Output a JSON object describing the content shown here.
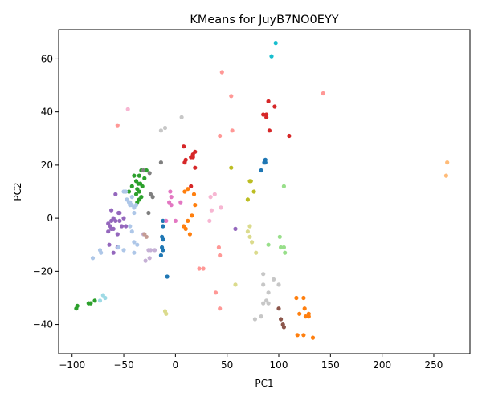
{
  "chart_data": {
    "type": "scatter",
    "title": "KMeans for JuyB7NO0EYY",
    "xlabel": "PC1",
    "ylabel": "PC2",
    "xlim": [
      -113,
      285
    ],
    "ylim": [
      -51,
      71
    ],
    "xticks": [
      -100,
      -50,
      0,
      50,
      100,
      150,
      200,
      250
    ],
    "yticks": [
      -40,
      -20,
      0,
      20,
      40,
      60
    ],
    "grid": false,
    "legend": "none",
    "series": [
      {
        "color": "#1f77b4",
        "points": [
          [
            -12,
            -1
          ],
          [
            -12,
            -3
          ],
          [
            -13,
            -7
          ],
          [
            -12,
            -8
          ],
          [
            -13,
            -11
          ],
          [
            -12,
            -12
          ],
          [
            -14,
            -14
          ],
          [
            -8,
            -22
          ],
          [
            83,
            18
          ],
          [
            86,
            21
          ],
          [
            87,
            22
          ],
          [
            87,
            21
          ]
        ]
      },
      {
        "color": "#ff7f0e",
        "points": [
          [
            9,
            10
          ],
          [
            12,
            11
          ],
          [
            18,
            9
          ],
          [
            19,
            5
          ],
          [
            16,
            1
          ],
          [
            12,
            -1
          ],
          [
            10,
            -4
          ],
          [
            8,
            -3
          ],
          [
            14,
            -6
          ],
          [
            117,
            -30
          ],
          [
            124,
            -30
          ],
          [
            125,
            -34
          ],
          [
            129,
            -36
          ],
          [
            120,
            -36
          ],
          [
            126,
            -37
          ],
          [
            129,
            -37
          ],
          [
            118,
            -44
          ],
          [
            124,
            -44
          ],
          [
            133,
            -45
          ]
        ]
      },
      {
        "color": "#2ca02c",
        "points": [
          [
            -45,
            10
          ],
          [
            -42,
            12
          ],
          [
            -40,
            16
          ],
          [
            -38,
            14
          ],
          [
            -35,
            16
          ],
          [
            -33,
            18
          ],
          [
            -37,
            11
          ],
          [
            -35,
            10
          ],
          [
            -33,
            8
          ],
          [
            -37,
            6
          ],
          [
            -35,
            7
          ],
          [
            -28,
            18
          ],
          [
            -30,
            15
          ],
          [
            -32,
            12
          ],
          [
            -38,
            9
          ],
          [
            -36,
            13
          ],
          [
            -34,
            13
          ],
          [
            -96,
            -34
          ],
          [
            -95,
            -33
          ],
          [
            -84,
            -32
          ],
          [
            -82,
            -32
          ],
          [
            -78,
            -31
          ]
        ]
      },
      {
        "color": "#d62728",
        "points": [
          [
            85,
            39
          ],
          [
            88,
            39
          ],
          [
            88,
            38
          ],
          [
            90,
            44
          ],
          [
            96,
            42
          ],
          [
            91,
            33
          ],
          [
            110,
            31
          ],
          [
            8,
            27
          ],
          [
            17,
            24
          ],
          [
            19,
            25
          ],
          [
            15,
            23
          ],
          [
            17,
            23
          ],
          [
            10,
            22
          ],
          [
            9,
            21
          ],
          [
            19,
            19
          ],
          [
            15,
            12
          ]
        ]
      },
      {
        "color": "#9467bd",
        "points": [
          [
            -62,
            3
          ],
          [
            -58,
            9
          ],
          [
            -55,
            2
          ],
          [
            -54,
            2
          ],
          [
            -60,
            0
          ],
          [
            -62,
            -1
          ],
          [
            -58,
            -1
          ],
          [
            -65,
            -2
          ],
          [
            -63,
            -3
          ],
          [
            -65,
            -5
          ],
          [
            -62,
            -4
          ],
          [
            -60,
            -4
          ],
          [
            -56,
            -6
          ],
          [
            -52,
            -3
          ],
          [
            -54,
            -1
          ],
          [
            -50,
            0
          ],
          [
            -48,
            -3
          ],
          [
            -56,
            -11
          ],
          [
            -64,
            -10
          ],
          [
            -60,
            -13
          ],
          [
            58,
            -4
          ]
        ]
      },
      {
        "color": "#8c564b",
        "points": [
          [
            100,
            -34
          ],
          [
            102,
            -38
          ],
          [
            104,
            -40
          ],
          [
            105,
            -41
          ]
        ]
      },
      {
        "color": "#e377c2",
        "points": [
          [
            -5,
            10
          ],
          [
            -4,
            8
          ],
          [
            -6,
            6
          ],
          [
            -4,
            5
          ],
          [
            -9,
            -1
          ],
          [
            0,
            -1
          ],
          [
            5,
            6
          ]
        ]
      },
      {
        "color": "#7f7f7f",
        "points": [
          [
            -31,
            18
          ],
          [
            -25,
            17
          ],
          [
            -14,
            21
          ],
          [
            -24,
            9
          ],
          [
            -22,
            8
          ],
          [
            -26,
            2
          ]
        ]
      },
      {
        "color": "#bcbd22",
        "points": [
          [
            54,
            19
          ],
          [
            72,
            14
          ],
          [
            73,
            14
          ],
          [
            76,
            10
          ],
          [
            70,
            7
          ]
        ]
      },
      {
        "color": "#17becf",
        "points": [
          [
            97,
            66
          ],
          [
            93,
            61
          ]
        ]
      },
      {
        "color": "#aec7e8",
        "points": [
          [
            -50,
            10
          ],
          [
            -48,
            10
          ],
          [
            -47,
            7
          ],
          [
            -45,
            6
          ],
          [
            -44,
            5
          ],
          [
            -42,
            5
          ],
          [
            -40,
            4
          ],
          [
            -42,
            8
          ],
          [
            -40,
            2
          ],
          [
            -42,
            -5
          ],
          [
            -44,
            -3
          ],
          [
            -40,
            -9
          ],
          [
            -37,
            -10
          ],
          [
            -40,
            -13
          ],
          [
            -50,
            -12
          ],
          [
            -55,
            -11
          ],
          [
            -73,
            -12
          ],
          [
            -72,
            -13
          ],
          [
            -80,
            -15
          ],
          [
            -44,
            6
          ],
          [
            -38,
            5
          ]
        ]
      },
      {
        "color": "#ffbb78",
        "points": [
          [
            263,
            21
          ],
          [
            262,
            16
          ]
        ]
      },
      {
        "color": "#98df8a",
        "points": [
          [
            105,
            12
          ],
          [
            90,
            -10
          ],
          [
            101,
            -7
          ],
          [
            102,
            -11
          ],
          [
            105,
            -11
          ],
          [
            106,
            -13
          ]
        ]
      },
      {
        "color": "#ff9896",
        "points": [
          [
            45,
            55
          ],
          [
            54,
            46
          ],
          [
            -56,
            35
          ],
          [
            43,
            31
          ],
          [
            55,
            33
          ],
          [
            42,
            -11
          ],
          [
            43,
            -14
          ],
          [
            39,
            -28
          ],
          [
            43,
            -34
          ],
          [
            143,
            47
          ],
          [
            23,
            -19
          ],
          [
            27,
            -19
          ]
        ]
      },
      {
        "color": "#c5b0d5",
        "points": [
          [
            -31,
            -6
          ],
          [
            -26,
            -12
          ],
          [
            -24,
            -12
          ],
          [
            -20,
            -12
          ],
          [
            -29,
            -16
          ],
          [
            -25,
            -15
          ]
        ]
      },
      {
        "color": "#c49c94",
        "points": [
          [
            -30,
            -6
          ],
          [
            -28,
            -7
          ]
        ]
      },
      {
        "color": "#f7b6d2",
        "points": [
          [
            -46,
            41
          ],
          [
            34,
            8
          ],
          [
            38,
            9
          ],
          [
            35,
            3
          ],
          [
            33,
            -1
          ],
          [
            44,
            4
          ]
        ]
      },
      {
        "color": "#c7c7c7",
        "points": [
          [
            6,
            38
          ],
          [
            -10,
            34
          ],
          [
            -14,
            33
          ],
          [
            85,
            -21
          ],
          [
            95,
            -23
          ],
          [
            85,
            -25
          ],
          [
            100,
            -25
          ],
          [
            90,
            -28
          ],
          [
            88,
            -31
          ],
          [
            85,
            -32
          ],
          [
            90,
            -32
          ],
          [
            77,
            -38
          ],
          [
            83,
            -37
          ]
        ]
      },
      {
        "color": "#dbdb8d",
        "points": [
          [
            72,
            -3
          ],
          [
            72,
            -7
          ],
          [
            70,
            -5
          ],
          [
            74,
            -9
          ],
          [
            78,
            -13
          ],
          [
            58,
            -25
          ],
          [
            -10,
            -35
          ],
          [
            -9,
            -36
          ]
        ]
      },
      {
        "color": "#9edae5",
        "points": [
          [
            -70,
            -29
          ],
          [
            -68,
            -30
          ],
          [
            -73,
            -31
          ]
        ]
      }
    ]
  }
}
